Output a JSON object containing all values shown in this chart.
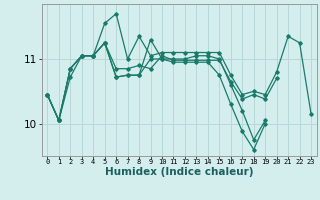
{
  "title": "",
  "xlabel": "Humidex (Indice chaleur)",
  "background_color": "#d4eeee",
  "grid_color": "#b8d8d8",
  "line_color": "#1a7a6a",
  "x_ticks": [
    0,
    1,
    2,
    3,
    4,
    5,
    6,
    7,
    8,
    9,
    10,
    11,
    12,
    13,
    14,
    15,
    16,
    17,
    18,
    19,
    20,
    21,
    22,
    23
  ],
  "y_ticks": [
    10,
    11
  ],
  "ylim": [
    9.5,
    11.85
  ],
  "xlim": [
    -0.5,
    23.5
  ],
  "series": [
    [
      10.45,
      10.05,
      10.85,
      11.05,
      11.05,
      11.55,
      11.7,
      11.0,
      11.35,
      11.05,
      11.1,
      11.1,
      11.1,
      11.1,
      11.1,
      11.1,
      10.75,
      10.45,
      10.5,
      10.45,
      10.8,
      11.35,
      11.25,
      10.15
    ],
    [
      10.45,
      10.05,
      10.85,
      11.05,
      11.05,
      11.25,
      10.85,
      10.85,
      10.9,
      10.85,
      11.05,
      10.98,
      10.98,
      10.98,
      10.98,
      10.98,
      10.65,
      10.38,
      10.45,
      10.38,
      10.7,
      null,
      null,
      null
    ],
    [
      10.45,
      10.05,
      10.85,
      11.05,
      11.05,
      11.25,
      10.72,
      10.75,
      10.75,
      11.3,
      11.0,
      11.0,
      11.0,
      11.05,
      11.05,
      11.0,
      10.6,
      10.2,
      9.75,
      10.05,
      null,
      null,
      null,
      null
    ],
    [
      10.45,
      10.05,
      10.72,
      11.05,
      11.05,
      11.25,
      10.72,
      10.75,
      10.75,
      11.0,
      11.0,
      10.95,
      10.95,
      10.95,
      10.95,
      10.75,
      10.3,
      9.88,
      9.6,
      10.0,
      null,
      null,
      null,
      null
    ]
  ]
}
